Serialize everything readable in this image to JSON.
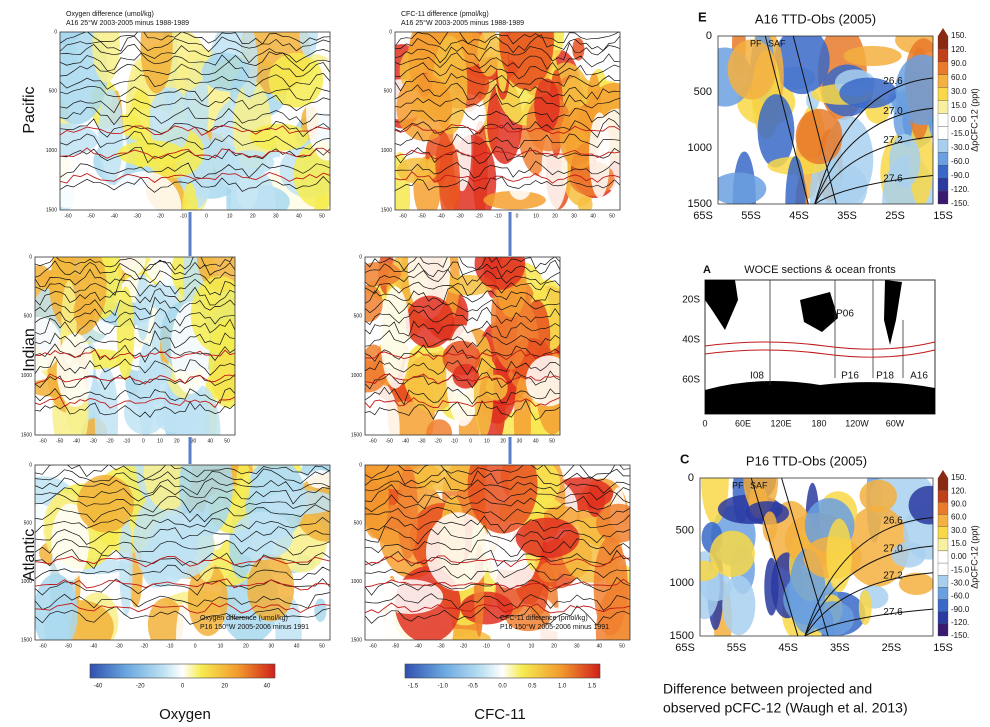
{
  "rows": [
    "Pacific",
    "Indian",
    "Atlantic"
  ],
  "columns": [
    "Oxygen",
    "CFC-11"
  ],
  "sections": [
    {
      "title": "Oxygen difference (umol/kg)",
      "subtitle": "A16 25°W 2003-2005 minus 1988-1989"
    },
    {
      "title": "CFC-11 difference (pmol/kg)",
      "subtitle": "A16 25°W 2003-2005 minus 1988-1989"
    },
    {},
    {},
    {
      "title": "Oxygen difference (umol/kg)",
      "subtitle": "P16 150°W 2005-2006 minus 1991"
    },
    {
      "title": "CFC-11 difference (pmol/kg)",
      "subtitle": "P16 150°W 2005-2006 minus 1991"
    }
  ],
  "section_yticks": [
    "0",
    "500",
    "1000",
    "1500"
  ],
  "section_xticks": [
    "-60",
    "-50",
    "-40",
    "-30",
    "-20",
    "-10",
    "0",
    "10",
    "20",
    "30",
    "40",
    "50"
  ],
  "oxygen_colorbar": [
    "-40",
    "-20",
    "0",
    "20",
    "40"
  ],
  "cfc_colorbar": [
    "-1.5",
    "-1.0",
    "-0.5",
    "0.0",
    "0.5",
    "1.0",
    "1.5"
  ],
  "panel_e": {
    "letter": "E",
    "title": "A16 TTD-Obs (2005)",
    "yticks": [
      "0",
      "500",
      "1000",
      "1500"
    ],
    "xticks": [
      "65S",
      "55S",
      "45S",
      "35S",
      "25S",
      "15S"
    ],
    "fronts": [
      "PF",
      "SAF"
    ],
    "contours": [
      "26.6",
      "27.0",
      "27.2",
      "27.6"
    ]
  },
  "panel_c": {
    "letter": "C",
    "title": "P16 TTD-Obs (2005)",
    "yticks": [
      "0",
      "500",
      "1000",
      "1500"
    ],
    "xticks": [
      "65S",
      "55S",
      "45S",
      "35S",
      "25S",
      "15S"
    ],
    "fronts": [
      "PF",
      "SAF"
    ],
    "contours": [
      "26.6",
      "27.0",
      "27.2",
      "27.6"
    ]
  },
  "ppt_colorbar": {
    "labels": [
      "150.",
      "120.",
      "90.0",
      "60.0",
      "30.0",
      "15.0",
      "0.00",
      "-15.0",
      "-30.0",
      "-60.0",
      "-90.0",
      "-120.",
      "-150."
    ],
    "axis_label": "ΔpCFC-12 (ppt)"
  },
  "map": {
    "letter": "A",
    "title": "WOCE sections & ocean fronts",
    "yticks": [
      "20S",
      "40S",
      "60S"
    ],
    "xticks": [
      "0",
      "60E",
      "120E",
      "180",
      "120W",
      "60W"
    ],
    "sections": [
      "P06",
      "I08",
      "P16",
      "P18",
      "A16"
    ]
  },
  "caption": [
    "Difference between projected and",
    "observed  pCFC-12 (Waugh et al. 2013)"
  ]
}
